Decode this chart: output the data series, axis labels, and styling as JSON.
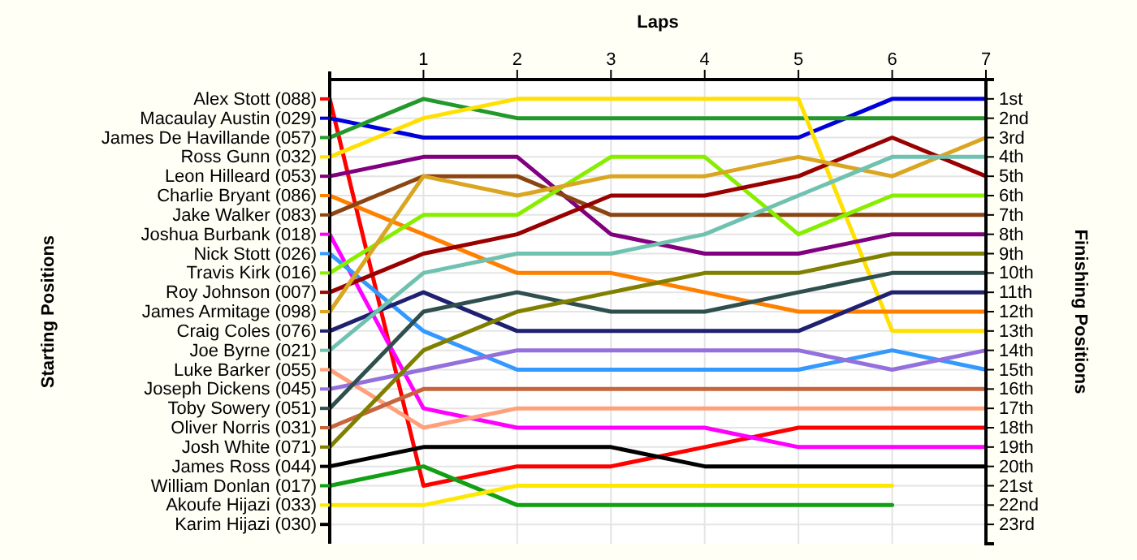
{
  "chart_data": {
    "type": "line",
    "xlabel": "Laps",
    "ylabel": "Finishing Positions",
    "annotations": [
      "Starting Positions",
      "Karim Hijazi (030)"
    ],
    "legend": "left",
    "x": [
      0,
      1,
      2,
      3,
      4,
      5,
      6,
      7
    ],
    "xlim": [
      0,
      7
    ],
    "xticks": [
      1,
      2,
      3,
      4,
      5,
      6,
      7
    ],
    "ylim": [
      24,
      0
    ],
    "yticks": [
      {
        "value": 1,
        "label": "1st"
      },
      {
        "value": 2,
        "label": "2nd"
      },
      {
        "value": 3,
        "label": "3rd"
      },
      {
        "value": 4,
        "label": "4th"
      },
      {
        "value": 5,
        "label": "5th"
      },
      {
        "value": 6,
        "label": "6th"
      },
      {
        "value": 7,
        "label": "7th"
      },
      {
        "value": 8,
        "label": "8th"
      },
      {
        "value": 9,
        "label": "9th"
      },
      {
        "value": 10,
        "label": "10th"
      },
      {
        "value": 11,
        "label": "11th"
      },
      {
        "value": 12,
        "label": "12th"
      },
      {
        "value": 13,
        "label": "13th"
      },
      {
        "value": 14,
        "label": "14th"
      },
      {
        "value": 15,
        "label": "15th"
      },
      {
        "value": 16,
        "label": "16th"
      },
      {
        "value": 17,
        "label": "17th"
      },
      {
        "value": 18,
        "label": "18th"
      },
      {
        "value": 19,
        "label": "19th"
      },
      {
        "value": 20,
        "label": "20th"
      },
      {
        "value": 21,
        "label": "21st"
      },
      {
        "value": 22,
        "label": "22nd"
      },
      {
        "value": 23,
        "label": "23rd"
      }
    ],
    "grid": true,
    "marker": "none",
    "line_style": "solid",
    "series": [
      {
        "name": "Alex Stott (088)",
        "color": "#ff0000",
        "values": [
          1,
          21,
          20,
          20,
          19,
          18,
          18,
          18
        ]
      },
      {
        "name": "Macaulay Austin (029)",
        "color": "#0000dd",
        "values": [
          2,
          3,
          3,
          3,
          3,
          3,
          1,
          1
        ]
      },
      {
        "name": "James De Havillande (057)",
        "color": "#22992a",
        "values": [
          3,
          1,
          2,
          2,
          2,
          2,
          2,
          2
        ]
      },
      {
        "name": "Ross Gunn (032)",
        "color": "#ffe000",
        "values": [
          4,
          2,
          1,
          1,
          1,
          1,
          13,
          13
        ]
      },
      {
        "name": "Leon Hilleard (053)",
        "color": "#800080",
        "values": [
          5,
          4,
          4,
          8,
          9,
          9,
          8,
          8
        ]
      },
      {
        "name": "Charlie Bryant (086)",
        "color": "#ff8000",
        "values": [
          6,
          8,
          10,
          10,
          11,
          12,
          12,
          12
        ]
      },
      {
        "name": "Jake Walker (083)",
        "color": "#8b4513",
        "values": [
          7,
          5,
          5,
          7,
          7,
          7,
          7,
          7
        ]
      },
      {
        "name": "Joshua Burbank (018)",
        "color": "#ff00ff",
        "values": [
          8,
          17,
          18,
          18,
          18,
          19,
          19,
          19
        ]
      },
      {
        "name": "Nick Stott (026)",
        "color": "#3399ff",
        "values": [
          9,
          13,
          15,
          15,
          15,
          15,
          14,
          15
        ]
      },
      {
        "name": "Travis Kirk (016)",
        "color": "#88ee00",
        "values": [
          10,
          7,
          7,
          4,
          4,
          8,
          6,
          6
        ]
      },
      {
        "name": "Roy Johnson (007)",
        "color": "#990000",
        "values": [
          11,
          9,
          8,
          6,
          6,
          5,
          3,
          5
        ]
      },
      {
        "name": "James Armitage (098)",
        "color": "#daa520",
        "values": [
          12,
          5,
          6,
          5,
          5,
          4,
          5,
          3
        ]
      },
      {
        "name": "Craig Coles (076)",
        "color": "#202070",
        "values": [
          13,
          11,
          13,
          13,
          13,
          13,
          11,
          11
        ]
      },
      {
        "name": "Joe Byrne (021)",
        "color": "#70c2b0",
        "values": [
          14,
          10,
          9,
          9,
          8,
          6,
          4,
          4
        ]
      },
      {
        "name": "Luke Barker (055)",
        "color": "#ffa07a",
        "values": [
          15,
          18,
          17,
          17,
          17,
          17,
          17,
          17
        ]
      },
      {
        "name": "Joseph Dickens (045)",
        "color": "#9370db",
        "values": [
          16,
          15,
          14,
          14,
          14,
          14,
          15,
          14
        ]
      },
      {
        "name": "Toby Sowery (051)",
        "color": "#2f4f4f",
        "values": [
          17,
          12,
          11,
          12,
          12,
          11,
          10,
          10
        ]
      },
      {
        "name": "Oliver Norris (031)",
        "color": "#c8643c",
        "values": [
          18,
          16,
          16,
          16,
          16,
          16,
          16,
          16
        ]
      },
      {
        "name": "Josh White (071)",
        "color": "#808000",
        "values": [
          19,
          14,
          12,
          11,
          10,
          10,
          9,
          9
        ]
      },
      {
        "name": "James Ross (044)",
        "color": "#000000",
        "values": [
          20,
          19,
          19,
          19,
          20,
          20,
          20,
          20
        ]
      },
      {
        "name": "William Donlan (017)",
        "color": "#11a011",
        "values": [
          21,
          20,
          22,
          22,
          22,
          22,
          22,
          null
        ]
      },
      {
        "name": "Akoufe Hijazi (033)",
        "color": "#ffe800",
        "values": [
          22,
          22,
          21,
          21,
          21,
          21,
          21,
          null
        ]
      }
    ]
  }
}
